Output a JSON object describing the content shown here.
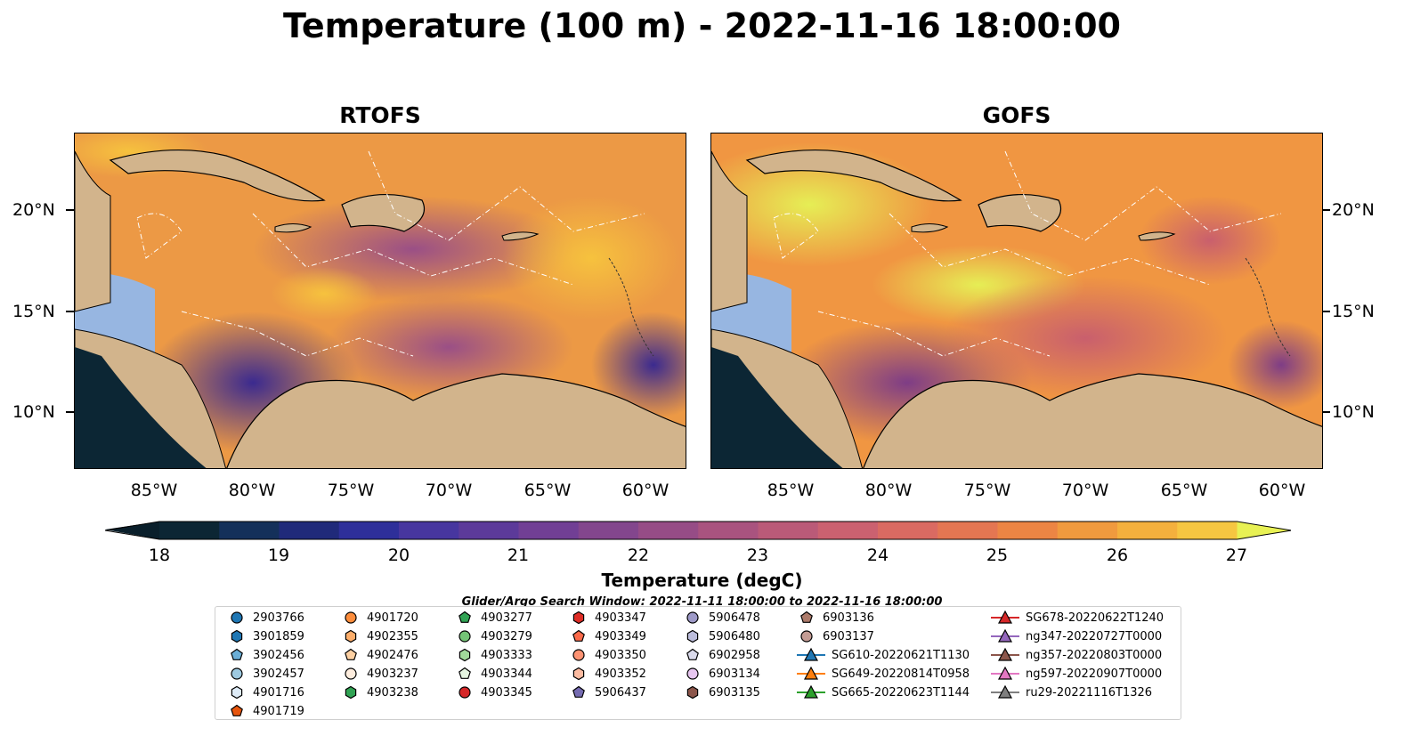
{
  "title": "Temperature (100 m) - 2022-11-16 18:00:00",
  "panels": [
    {
      "title": "RTOFS"
    },
    {
      "title": "GOFS"
    }
  ],
  "x_ticks": [
    "85°W",
    "80°W",
    "75°W",
    "70°W",
    "65°W",
    "60°W"
  ],
  "y_ticks": [
    "20°N",
    "15°N",
    "10°N"
  ],
  "colorbar": {
    "label": "Temperature (degC)",
    "ticks": [
      "18",
      "19",
      "20",
      "21",
      "22",
      "23",
      "24",
      "25",
      "26",
      "27"
    ],
    "min": 18,
    "max": 27,
    "step": 0.5,
    "extend": "both"
  },
  "search_window": "Glider/Argo Search Window: 2022-11-11 18:00:00 to 2022-11-16 18:00:00",
  "map_colors": {
    "land": "#d2b48c",
    "shelf": "#97b6e1",
    "deep_pacific": "#0c2634"
  },
  "legend": [
    {
      "label": "2903766",
      "marker": "circle",
      "color": "#1f77b4"
    },
    {
      "label": "3901859",
      "marker": "hexagon",
      "color": "#1f77b4"
    },
    {
      "label": "3902456",
      "marker": "pentagon",
      "color": "#6baed6"
    },
    {
      "label": "3902457",
      "marker": "circle",
      "color": "#9ecae1"
    },
    {
      "label": "4901716",
      "marker": "hexagon",
      "color": "#deebf7"
    },
    {
      "label": "4901719",
      "marker": "pentagon",
      "color": "#e6550d"
    },
    {
      "label": "4901720",
      "marker": "circle",
      "color": "#fd8d3c"
    },
    {
      "label": "4902355",
      "marker": "hexagon",
      "color": "#fdae6b"
    },
    {
      "label": "4902476",
      "marker": "pentagon",
      "color": "#fdd0a2"
    },
    {
      "label": "4903237",
      "marker": "circle",
      "color": "#feedde"
    },
    {
      "label": "4903238",
      "marker": "hexagon",
      "color": "#31a354"
    },
    {
      "label": "4903277",
      "marker": "pentagon",
      "color": "#31a354"
    },
    {
      "label": "4903279",
      "marker": "circle",
      "color": "#74c476"
    },
    {
      "label": "4903333",
      "marker": "hexagon",
      "color": "#a1d99b"
    },
    {
      "label": "4903344",
      "marker": "pentagon",
      "color": "#e5f5e0"
    },
    {
      "label": "4903345",
      "marker": "circle",
      "color": "#d62728"
    },
    {
      "label": "4903347",
      "marker": "hexagon",
      "color": "#de2d26"
    },
    {
      "label": "4903349",
      "marker": "pentagon",
      "color": "#fb6a4a"
    },
    {
      "label": "4903350",
      "marker": "circle",
      "color": "#fc9272"
    },
    {
      "label": "4903352",
      "marker": "hexagon",
      "color": "#fcbba1"
    },
    {
      "label": "5906437",
      "marker": "pentagon",
      "color": "#756bb1"
    },
    {
      "label": "5906478",
      "marker": "circle",
      "color": "#9e9ac8"
    },
    {
      "label": "5906480",
      "marker": "hexagon",
      "color": "#bcbddc"
    },
    {
      "label": "6902958",
      "marker": "pentagon",
      "color": "#dadaeb"
    },
    {
      "label": "6903134",
      "marker": "circle",
      "color": "#e7c6f0"
    },
    {
      "label": "6903135",
      "marker": "hexagon",
      "color": "#8c564b"
    },
    {
      "label": "6903136",
      "marker": "pentagon",
      "color": "#ad7b6b"
    },
    {
      "label": "6903137",
      "marker": "circle",
      "color": "#c49c94"
    },
    {
      "label": "SG610-20220621T1130",
      "marker": "triangle-line",
      "color": "#1f77b4"
    },
    {
      "label": "SG649-20220814T0958",
      "marker": "triangle-line",
      "color": "#ff7f0e"
    },
    {
      "label": "SG665-20220623T1144",
      "marker": "triangle-line",
      "color": "#2ca02c"
    },
    {
      "label": "SG678-20220622T1240",
      "marker": "triangle-line",
      "color": "#d62728"
    },
    {
      "label": "ng347-20220727T0000",
      "marker": "triangle-line",
      "color": "#9467bd"
    },
    {
      "label": "ng357-20220803T0000",
      "marker": "triangle-line",
      "color": "#8c564b"
    },
    {
      "label": "ng597-20220907T0000",
      "marker": "triangle-line",
      "color": "#e377c2"
    },
    {
      "label": "ru29-20221116T1326",
      "marker": "triangle-line",
      "color": "#7f7f7f"
    }
  ]
}
